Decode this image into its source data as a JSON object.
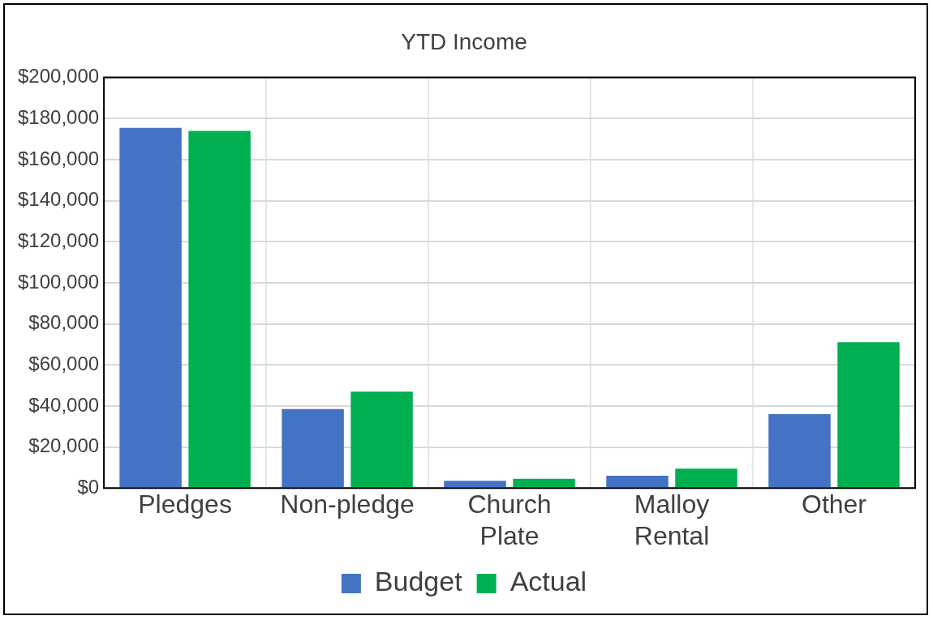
{
  "chart_data": {
    "type": "bar",
    "title": "YTD Income",
    "categories": [
      "Pledges",
      "Non-pledge",
      "Church Plate",
      "Malloy Rental",
      "Other"
    ],
    "series": [
      {
        "name": "Budget",
        "color": "#4472c4",
        "values": [
          175500,
          38500,
          3500,
          6000,
          36000
        ]
      },
      {
        "name": "Actual",
        "color": "#00b050",
        "values": [
          174000,
          47000,
          4500,
          9500,
          71000
        ]
      }
    ],
    "ylim": [
      0,
      200000
    ],
    "yticks": [
      {
        "value": 0,
        "label": "$0"
      },
      {
        "value": 20000,
        "label": "$20,000"
      },
      {
        "value": 40000,
        "label": "$40,000"
      },
      {
        "value": 60000,
        "label": "$60,000"
      },
      {
        "value": 80000,
        "label": "$80,000"
      },
      {
        "value": 100000,
        "label": "$100,000"
      },
      {
        "value": 120000,
        "label": "$120,000"
      },
      {
        "value": 140000,
        "label": "$140,000"
      },
      {
        "value": 160000,
        "label": "$160,000"
      },
      {
        "value": 180000,
        "label": "$180,000"
      },
      {
        "value": 200000,
        "label": "$200,000"
      }
    ],
    "grid": true,
    "legend": "bottom"
  }
}
